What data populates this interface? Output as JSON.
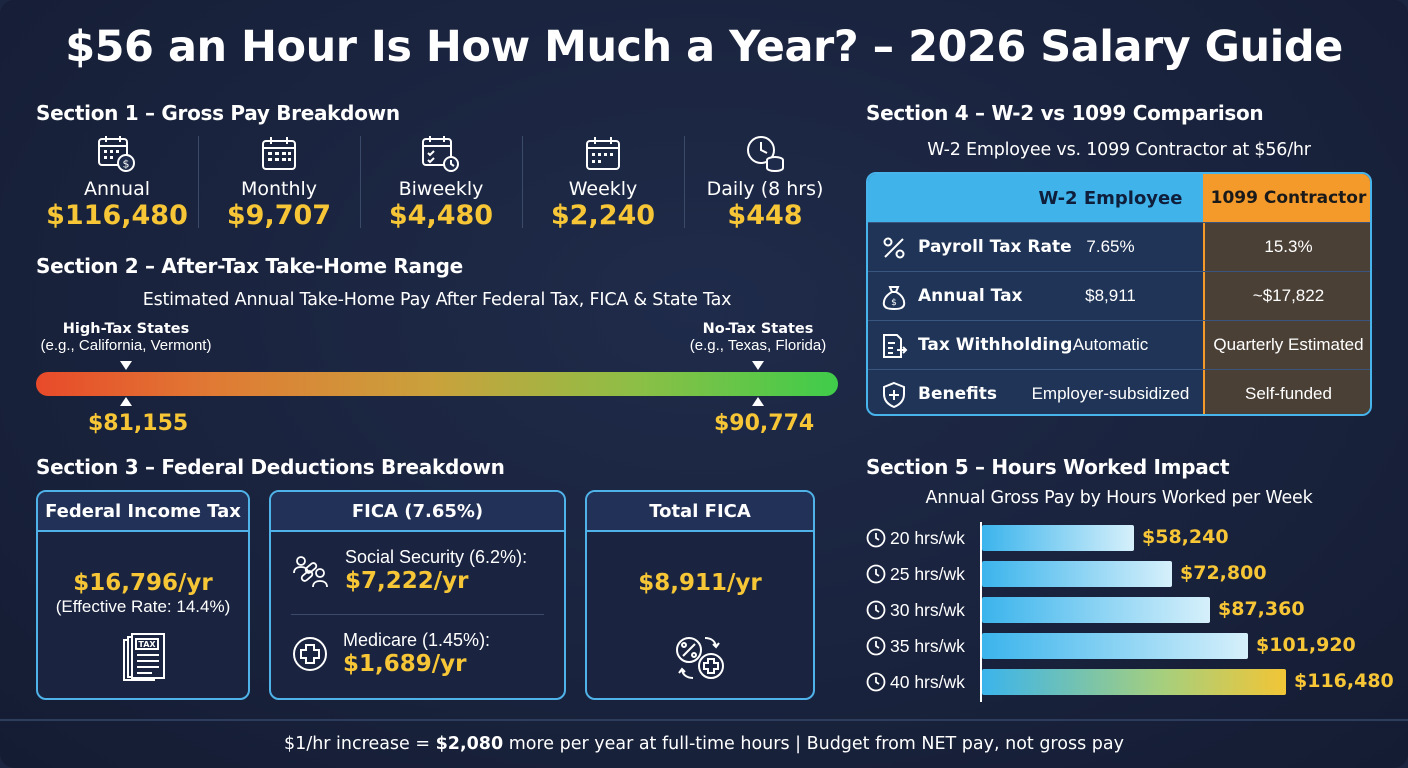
{
  "title": "$56 an Hour Is How Much a Year? – 2026 Salary Guide",
  "section1": {
    "heading": "Section 1 – Gross Pay Breakdown",
    "items": [
      {
        "label": "Annual",
        "value": "$116,480",
        "icon": "calendar-dollar-icon"
      },
      {
        "label": "Monthly",
        "value": "$9,707",
        "icon": "calendar-icon"
      },
      {
        "label": "Biweekly",
        "value": "$4,480",
        "icon": "calendar-clock-icon"
      },
      {
        "label": "Weekly",
        "value": "$2,240",
        "icon": "calendar-week-icon"
      },
      {
        "label": "Daily (8 hrs)",
        "value": "$448",
        "icon": "clock-coins-icon"
      }
    ]
  },
  "section2": {
    "heading": "Section 2 – After-Tax Take-Home Range",
    "subheading": "Estimated Annual Take-Home Pay After Federal Tax, FICA & State Tax",
    "low": {
      "title": "High-Tax States",
      "example": "(e.g., California, Vermont)",
      "value": "$81,155"
    },
    "high": {
      "title": "No-Tax States",
      "example": "(e.g., Texas, Florida)",
      "value": "$90,774"
    }
  },
  "section3": {
    "heading": "Section 3 – Federal Deductions Breakdown",
    "federal": {
      "title": "Federal Income Tax",
      "value": "$16,796/yr",
      "note": "(Effective Rate: 14.4%)",
      "icon_text": "TAX"
    },
    "fica": {
      "title": "FICA (7.65%)",
      "social_security_label": "Social Security (6.2%):",
      "social_security_value": "$7,222/yr",
      "medicare_label": "Medicare (1.45%):",
      "medicare_value": "$1,689/yr"
    },
    "total": {
      "title": "Total FICA",
      "value": "$8,911/yr"
    }
  },
  "section4": {
    "heading": "Section 4 – W-2 vs 1099 Comparison",
    "subheading": "W-2 Employee vs. 1099 Contractor at $56/hr",
    "col_w2": "W-2 Employee",
    "col_1099": "1099 Contractor",
    "rows": [
      {
        "label": "Payroll Tax Rate",
        "w2": "7.65%",
        "c1099": "15.3%",
        "icon": "percent-icon"
      },
      {
        "label": "Annual Tax",
        "w2": "$8,911",
        "c1099": "~$17,822",
        "icon": "money-bag-icon"
      },
      {
        "label": "Tax Withholding",
        "w2": "Automatic",
        "c1099": "Quarterly Estimated",
        "icon": "document-arrow-icon"
      },
      {
        "label": "Benefits",
        "w2": "Employer-subsidized",
        "c1099": "Self-funded",
        "icon": "shield-plus-icon"
      }
    ],
    "colors": {
      "w2_header": "#3fb3ea",
      "c1099_header": "#f49a2a"
    }
  },
  "section5": {
    "heading": "Section 5 – Hours Worked Impact",
    "subheading": "Annual Gross Pay by Hours Worked per Week"
  },
  "chart_data": {
    "type": "bar",
    "orientation": "horizontal",
    "categories": [
      "20 hrs/wk",
      "25 hrs/wk",
      "30 hrs/wk",
      "35 hrs/wk",
      "40 hrs/wk"
    ],
    "values": [
      58240,
      72800,
      87360,
      101920,
      116480
    ],
    "value_labels": [
      "$58,240",
      "$72,800",
      "$87,360",
      "$101,920",
      "$116,480"
    ],
    "title": "Annual Gross Pay by Hours Worked per Week",
    "xlim": [
      0,
      116480
    ]
  },
  "footer": {
    "part1": "$1/hr increase = ",
    "bold": "$2,080",
    "part2": " more per year at full-time hours  |  Budget from NET pay, not gross pay"
  },
  "colors": {
    "accent_gold": "#f7c636",
    "accent_blue": "#4fb3ea",
    "background": "#1b2540"
  }
}
